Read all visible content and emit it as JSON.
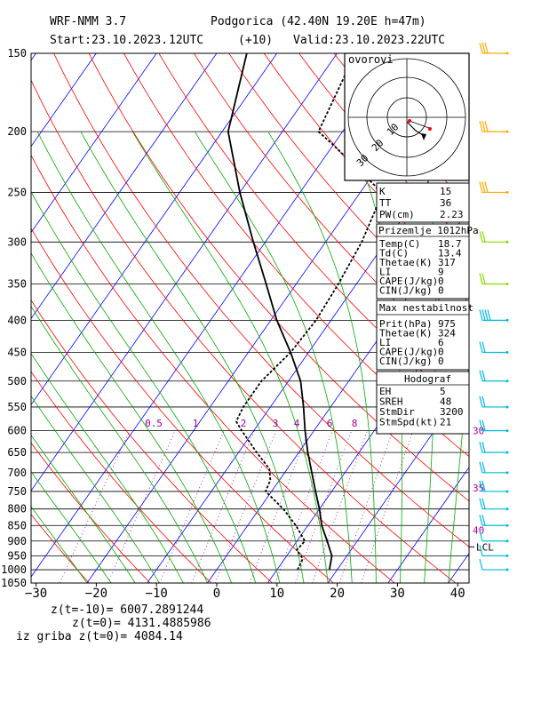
{
  "header": {
    "model": "WRF-NMM 3.7",
    "station": "Podgorica (42.40N 19.20E  h=47m)",
    "start": "Start:23.10.2023.",
    "start_time": "12UTC",
    "lead": "(+10)",
    "valid": "Valid:23.10.2023.",
    "valid_time": "22UTC"
  },
  "colors": {
    "isotherm": "#0000ff",
    "dry_adiabat": "#ff0000",
    "moist_adiabat": "#00aa00",
    "mixing_ratio": "#990099",
    "temperature": "#000000",
    "dewpoint": "#000000",
    "parcel": "#000000",
    "wind_barb_light": "#dddd00",
    "wind_barb_mid": "#88dd00",
    "wind_barb_strong": "#00bbdd",
    "wind_barb_upper": "#ffaa00",
    "label_purple": "#aa00aa"
  },
  "hodograph": {
    "title": "ovorovi",
    "labels": [
      "10",
      "20",
      "30"
    ]
  },
  "indices": {
    "k_label": "K",
    "k": "15",
    "tt_label": "TT",
    "tt": "36",
    "pw_label": "PW(cm)",
    "pw": "2.23"
  },
  "surface": {
    "title": "Prizemlje  1012hPa",
    "rows": [
      {
        "k": "Temp(C)",
        "v": "18.7"
      },
      {
        "k": "Td(C)",
        "v": "13.4"
      },
      {
        "k": "Thetae(K)",
        "v": "317"
      },
      {
        "k": "LI",
        "v": "9"
      },
      {
        "k": "CAPE(J/kg)",
        "v": "0"
      },
      {
        "k": "CIN(J/kg)",
        "v": "0"
      }
    ]
  },
  "max_instability": {
    "title": "Max nestabilnost",
    "rows": [
      {
        "k": "Prit(hPa)",
        "v": "975"
      },
      {
        "k": "Thetae(K)",
        "v": "324"
      },
      {
        "k": "LI",
        "v": "6"
      },
      {
        "k": "CAPE(J/kg)",
        "v": "0"
      },
      {
        "k": "CIN(J/kg)",
        "v": "0"
      }
    ]
  },
  "hodograf": {
    "title": "Hodograf",
    "rows": [
      {
        "k": "EH",
        "v": "5"
      },
      {
        "k": "SREH",
        "v": "48"
      },
      {
        "k": "StmDir",
        "v": "3200"
      },
      {
        "k": "StmSpd(kt)",
        "v": "21"
      }
    ]
  },
  "footer": {
    "line1": "z(t=-10)=  6007.2891244",
    "line2": "z(t=0)=   4131.4885986",
    "line3": "iz griba  z(t=0)=  4084.14"
  },
  "chart_data": {
    "type": "line",
    "title": "",
    "xlabel": "",
    "ylabel": "",
    "y_scale": "log",
    "x_ticks": [
      "-30",
      "-20",
      "-10",
      "0",
      "10",
      "20",
      "30",
      "40"
    ],
    "y_ticks": [
      "150",
      "200",
      "250",
      "300",
      "350",
      "400",
      "450",
      "500",
      "550",
      "600",
      "650",
      "700",
      "750",
      "800",
      "850",
      "900",
      "950",
      "1000",
      "1050"
    ],
    "xlim": [
      -30,
      42
    ],
    "ylim": [
      1050,
      150
    ],
    "mixing_ratio_labels": [
      "0.5",
      "1",
      "2",
      "3",
      "4",
      "6",
      "8"
    ],
    "right_labels": [
      "30",
      "35",
      "40"
    ],
    "lcl_label": "LCL",
    "lcl_p": 950,
    "series": [
      {
        "name": "",
        "style": "solid",
        "points": [
          [
            1000,
            18.7
          ],
          [
            950,
            17.5
          ],
          [
            900,
            15
          ],
          [
            850,
            12.3
          ],
          [
            800,
            10
          ],
          [
            750,
            7.3
          ],
          [
            700,
            4.5
          ],
          [
            650,
            1.5
          ],
          [
            600,
            -1.5
          ],
          [
            550,
            -4.5
          ],
          [
            500,
            -8
          ],
          [
            450,
            -13
          ],
          [
            400,
            -19
          ],
          [
            350,
            -25
          ],
          [
            300,
            -32
          ],
          [
            250,
            -40
          ],
          [
            200,
            -49
          ],
          [
            150,
            -55
          ]
        ]
      },
      {
        "name": "",
        "style": "dashed",
        "points": [
          [
            1000,
            13.4
          ],
          [
            960,
            13
          ],
          [
            930,
            11
          ],
          [
            900,
            11.3
          ],
          [
            850,
            8
          ],
          [
            800,
            4
          ],
          [
            750,
            -1
          ],
          [
            720,
            -1.5
          ],
          [
            690,
            -3
          ],
          [
            650,
            -7
          ],
          [
            600,
            -12
          ],
          [
            580,
            -14
          ],
          [
            550,
            -14.5
          ],
          [
            500,
            -14.5
          ],
          [
            450,
            -13
          ],
          [
            400,
            -12.5
          ],
          [
            350,
            -13
          ],
          [
            300,
            -14
          ],
          [
            255,
            -16
          ],
          [
            245,
            -18
          ],
          [
            210,
            -30
          ],
          [
            200,
            -34
          ],
          [
            150,
            -37
          ]
        ]
      }
    ],
    "winds": [
      {
        "p": 150,
        "kt": 30
      },
      {
        "p": 200,
        "kt": 30
      },
      {
        "p": 250,
        "kt": 25
      },
      {
        "p": 300,
        "kt": 20
      },
      {
        "p": 350,
        "kt": 20
      },
      {
        "p": 400,
        "kt": 35
      },
      {
        "p": 450,
        "kt": 20
      },
      {
        "p": 500,
        "kt": 20
      },
      {
        "p": 550,
        "kt": 20
      },
      {
        "p": 600,
        "kt": 20
      },
      {
        "p": 650,
        "kt": 20
      },
      {
        "p": 700,
        "kt": 20
      },
      {
        "p": 750,
        "kt": 20
      },
      {
        "p": 800,
        "kt": 15
      },
      {
        "p": 850,
        "kt": 15
      },
      {
        "p": 900,
        "kt": 10
      },
      {
        "p": 950,
        "kt": 10
      },
      {
        "p": 1000,
        "kt": 5
      }
    ]
  }
}
